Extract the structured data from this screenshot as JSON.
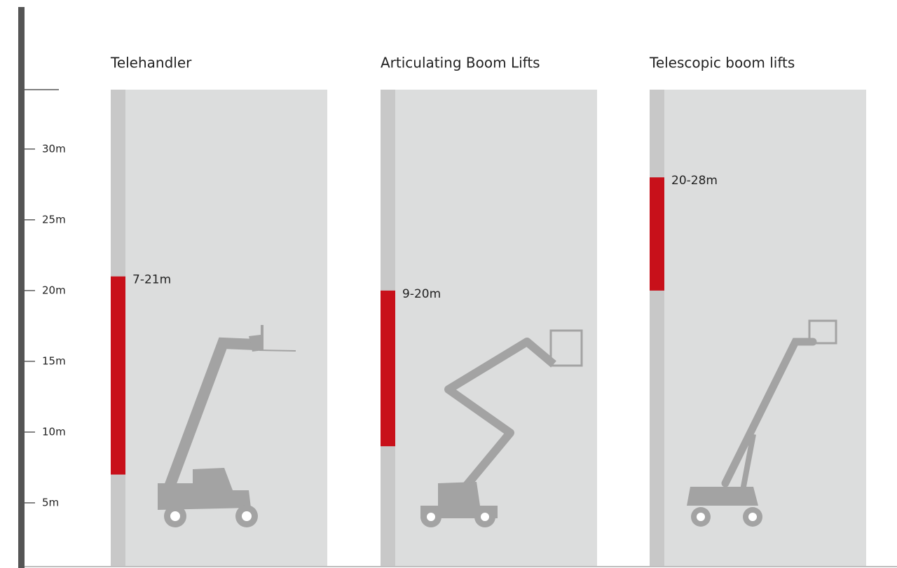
{
  "chart_data": {
    "type": "range-bar",
    "categories": [
      "Telehandler",
      "Articulating Boom Lifts",
      "Telescopic boom lifts"
    ],
    "values": [
      [
        7,
        21
      ],
      [
        9,
        20
      ],
      [
        20,
        28
      ]
    ],
    "value_labels": [
      "7-21m",
      "9-20m",
      "20-28m"
    ],
    "color": "#c8101a",
    "ylim": [
      0,
      34
    ],
    "yticks": [
      {
        "value": 5,
        "label": "5m"
      },
      {
        "value": 10,
        "label": "10m"
      },
      {
        "value": 15,
        "label": "15m"
      },
      {
        "value": 20,
        "label": "20m"
      },
      {
        "value": 25,
        "label": "25m"
      },
      {
        "value": 30,
        "label": "30m"
      }
    ]
  }
}
